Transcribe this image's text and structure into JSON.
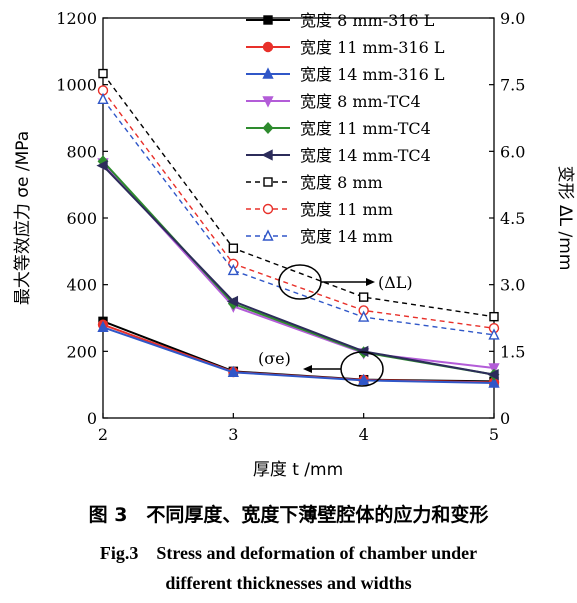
{
  "caption": {
    "cn": "图 3　不同厚度、宽度下薄壁腔体的应力和变形",
    "en_line1": "Fig.3　Stress and deformation of chamber under",
    "en_line2": "different thicknesses and widths"
  },
  "chart_data": {
    "type": "line",
    "x": [
      2,
      3,
      4,
      5
    ],
    "xlabel": "厚度 t /mm",
    "ylabel_left": "最大等效应力 σe /MPa",
    "ylabel_right": "变形 ΔL /mm",
    "xlim": [
      2,
      5
    ],
    "ylim_left": [
      0,
      1200
    ],
    "ylim_right": [
      0,
      9
    ],
    "x_ticks": [
      "2",
      "3",
      "4",
      "5"
    ],
    "y_ticks_left": [
      "0",
      "200",
      "400",
      "600",
      "800",
      "1000",
      "1200"
    ],
    "y_ticks_right": [
      "0",
      "1.5",
      "3.0",
      "4.5",
      "6.0",
      "7.5",
      "9.0"
    ],
    "grid": false,
    "legend_position": "top-right",
    "annotations": [
      "(ΔL)",
      "(σe)"
    ],
    "series": [
      {
        "name": "宽度 8 mm-316 L",
        "axis": "left",
        "values": [
          290,
          140,
          115,
          110
        ],
        "color": "#000000",
        "marker": "square-filled",
        "dash": false
      },
      {
        "name": "宽度 11 mm-316 L",
        "axis": "left",
        "values": [
          280,
          138,
          114,
          107
        ],
        "color": "#e8302a",
        "marker": "circle-filled",
        "dash": false
      },
      {
        "name": "宽度 14 mm-316 L",
        "axis": "left",
        "values": [
          272,
          137,
          113,
          105
        ],
        "color": "#3057c8",
        "marker": "triangle-up-filled",
        "dash": false
      },
      {
        "name": "宽度 8 mm-TC4",
        "axis": "left",
        "values": [
          765,
          335,
          195,
          150
        ],
        "color": "#b35cd8",
        "marker": "triangle-down-filled",
        "dash": false
      },
      {
        "name": "宽度 11 mm-TC4",
        "axis": "left",
        "values": [
          770,
          343,
          197,
          130
        ],
        "color": "#2e8b2e",
        "marker": "diamond-filled",
        "dash": false
      },
      {
        "name": "宽度 14 mm-TC4",
        "axis": "left",
        "values": [
          757,
          350,
          200,
          130
        ],
        "color": "#2c2c5a",
        "marker": "triangle-left-filled",
        "dash": false
      },
      {
        "name": "宽度 8 mm",
        "axis": "right",
        "values": [
          7.75,
          3.82,
          2.72,
          2.28
        ],
        "color": "#000000",
        "marker": "square-open",
        "dash": true
      },
      {
        "name": "宽度 11 mm",
        "axis": "right",
        "values": [
          7.37,
          3.47,
          2.42,
          2.02
        ],
        "color": "#e8302a",
        "marker": "circle-open",
        "dash": true
      },
      {
        "name": "宽度 14 mm",
        "axis": "right",
        "values": [
          7.17,
          3.32,
          2.27,
          1.87
        ],
        "color": "#3057c8",
        "marker": "triangle-open",
        "dash": true
      }
    ]
  }
}
